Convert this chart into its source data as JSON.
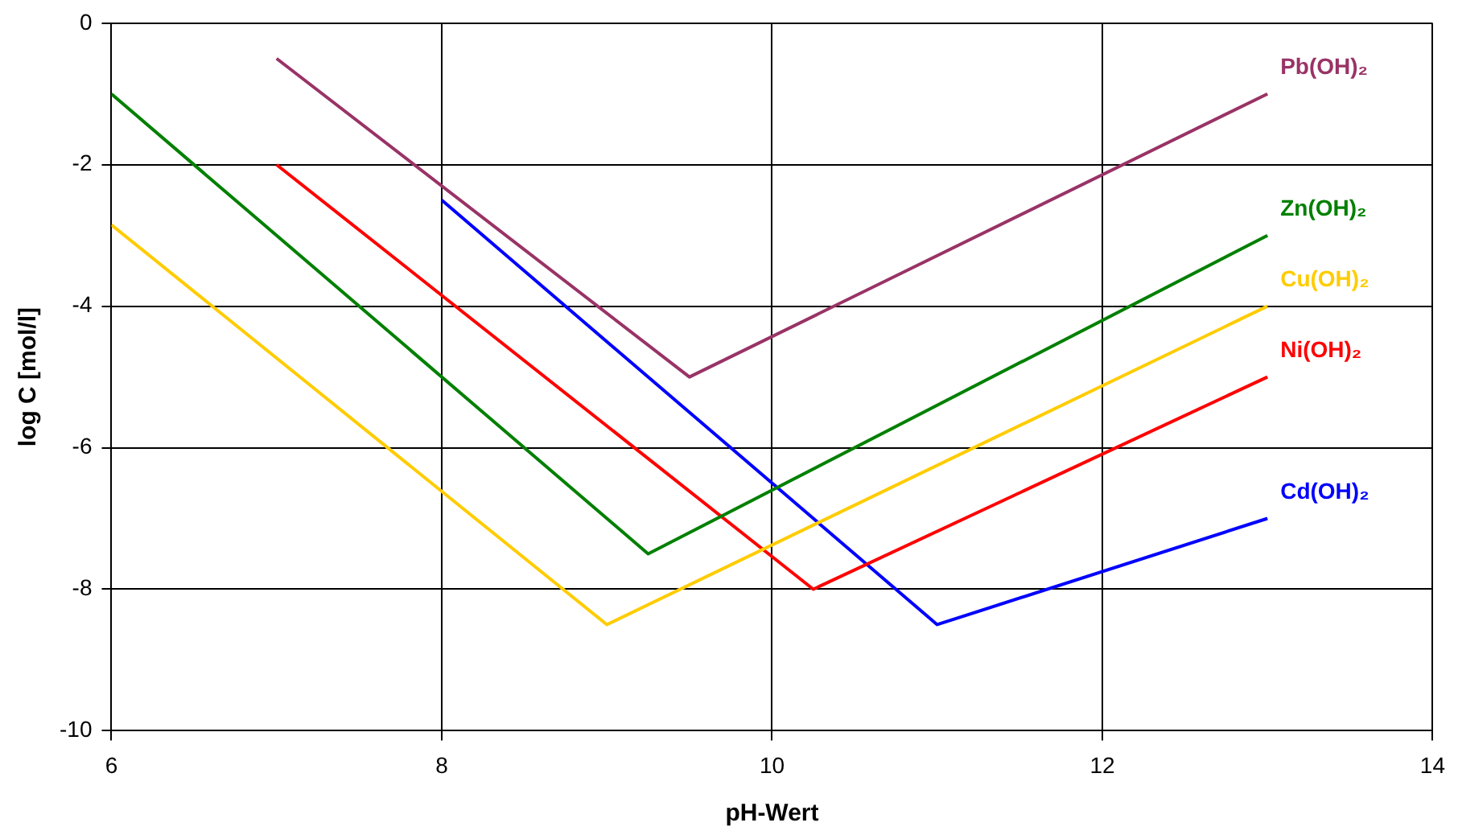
{
  "chart_data": {
    "type": "line",
    "xlabel": "pH-Wert",
    "ylabel": "log C [mol/l]",
    "xlim": [
      6,
      14
    ],
    "xticks": [
      6,
      8,
      10,
      12,
      14
    ],
    "ylim": [
      -10,
      0
    ],
    "yticks": [
      -10,
      -8,
      -6,
      -4,
      -2,
      0
    ],
    "grid": true,
    "legend": false,
    "marker": "none",
    "line_style": "solid",
    "series": [
      {
        "name": "Pb(OH)₂",
        "color": "#993366",
        "x": [
          7,
          9.5,
          13
        ],
        "values": [
          -0.5,
          -5,
          -1
        ]
      },
      {
        "name": "Zn(OH)₂",
        "color": "#008000",
        "x": [
          6,
          9.25,
          13
        ],
        "values": [
          -1,
          -7.5,
          -3
        ]
      },
      {
        "name": "Cu(OH)₂",
        "color": "#ffcc00",
        "x": [
          6,
          9,
          13
        ],
        "values": [
          -2.85,
          -8.5,
          -4
        ]
      },
      {
        "name": "Ni(OH)₂",
        "color": "#ff0000",
        "x": [
          7,
          10.25,
          13
        ],
        "values": [
          -2,
          -8,
          -5
        ]
      },
      {
        "name": "Cd(OH)₂",
        "color": "#0000ff",
        "x": [
          8,
          11,
          13
        ],
        "values": [
          -2.5,
          -8.5,
          -7
        ]
      }
    ]
  }
}
